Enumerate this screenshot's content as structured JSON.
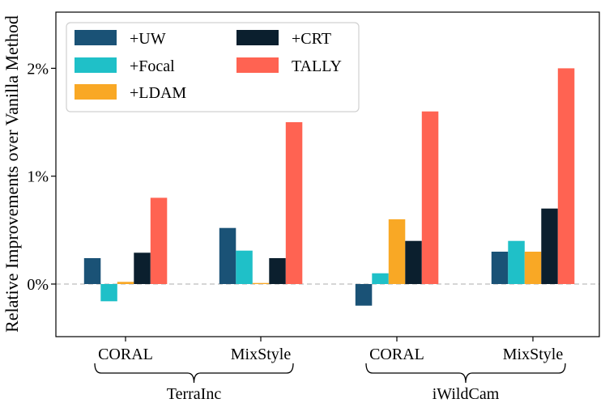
{
  "chart_data": {
    "type": "bar",
    "title": "",
    "xlabel": "",
    "ylabel": "Relative Improvements over Vanilla Method",
    "ylim": [
      -0.5,
      2.5
    ],
    "yticks": [
      {
        "value": 0,
        "label": "0%"
      },
      {
        "value": 1,
        "label": "1%"
      },
      {
        "value": 2,
        "label": "2%"
      }
    ],
    "categories": [
      "CORAL",
      "MixStyle",
      "CORAL",
      "MixStyle"
    ],
    "groups": [
      {
        "label": "TerraInc",
        "categories": [
          0,
          1
        ]
      },
      {
        "label": "iWildCam",
        "categories": [
          2,
          3
        ]
      }
    ],
    "series": [
      {
        "name": "+UW",
        "color": "#1a5276",
        "values": [
          0.24,
          0.52,
          -0.2,
          0.3
        ]
      },
      {
        "name": "+Focal",
        "color": "#1fc0c8",
        "values": [
          -0.16,
          0.31,
          0.1,
          0.4
        ]
      },
      {
        "name": "+LDAM",
        "color": "#f9a825",
        "values": [
          0.02,
          0.01,
          0.6,
          0.3
        ]
      },
      {
        "name": "+CRT",
        "color": "#0b1f2e",
        "values": [
          0.29,
          0.24,
          0.4,
          0.7
        ]
      },
      {
        "name": "TALLY",
        "color": "#ff6352",
        "values": [
          0.8,
          1.5,
          1.6,
          2.0
        ]
      }
    ],
    "reference_line": {
      "value": 0,
      "style": "dashed",
      "color": "#c8c8c8"
    },
    "legend": {
      "placement": "top-left",
      "columns": 2,
      "order": [
        "+UW",
        "+Focal",
        "+LDAM",
        "+CRT",
        "TALLY"
      ]
    }
  }
}
